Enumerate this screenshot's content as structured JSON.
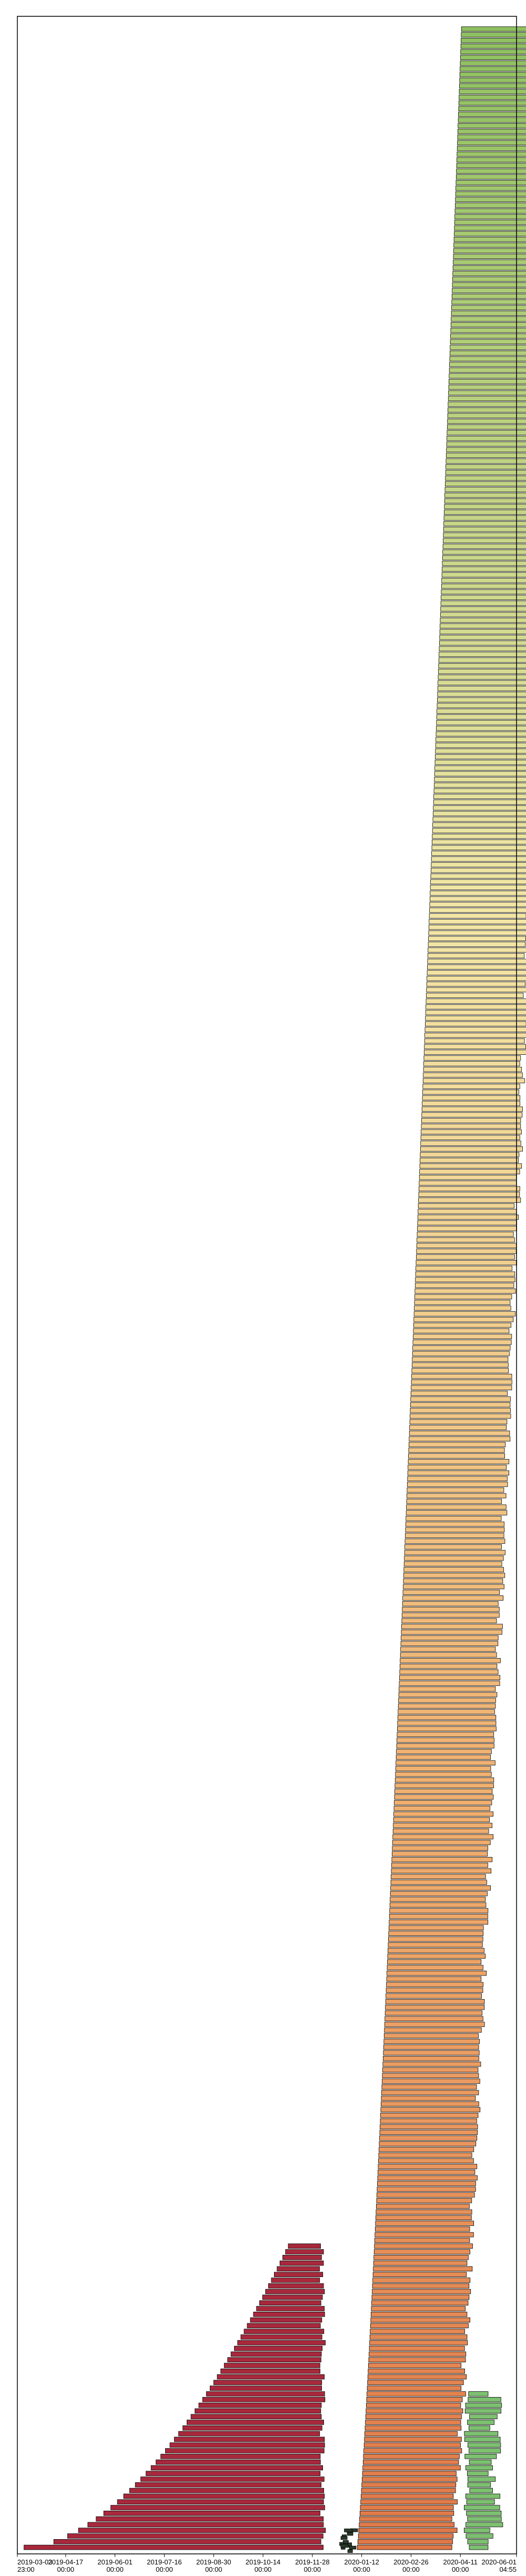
{
  "chart_data": {
    "type": "bar",
    "orientation": "horizontal",
    "title": "",
    "xlabel": "",
    "ylabel": "",
    "grid": false,
    "x_ticks": [
      [
        "2019-03-03",
        "23:00"
      ],
      [
        "2019-04-17",
        "00:00"
      ],
      [
        "2019-06-01",
        "00:00"
      ],
      [
        "2019-07-16",
        "00:00"
      ],
      [
        "2019-08-30",
        "00:00"
      ],
      [
        "2019-10-14",
        "00:00"
      ],
      [
        "2019-11-28",
        "00:00"
      ],
      [
        "2020-01-12",
        "00:00"
      ],
      [
        "2020-02-26",
        "00:00"
      ],
      [
        "2020-04-11",
        "00:00"
      ],
      [
        "2020-06-01",
        "04:55"
      ]
    ],
    "xlim": [
      "2019-03-03T23:00",
      "2020-06-01T04:55"
    ],
    "colors": {
      "red_group": "#a8283c",
      "orange_group": "#e07848",
      "yellow_group": "#f2e6a6",
      "green_group": "#8ec060",
      "light_green_group": "#7cc070",
      "outline": "#000000"
    },
    "groups": [
      {
        "color_key": "red_group",
        "bar_count": 60,
        "start_range": [
          "2019-03-10",
          "2019-11-06"
        ],
        "end_range": [
          "2019-12-04",
          "2019-12-10"
        ]
      },
      {
        "color_key": "orange_group",
        "bar_count": 40,
        "start_range": [
          "2020-01-04",
          "2020-01-12"
        ],
        "end_range": [
          "2020-04-05",
          "2020-04-11"
        ]
      },
      {
        "color_key": "yellow_group",
        "bar_count": 240,
        "start_range": [
          "2020-01-12",
          "2020-04-08"
        ],
        "end_range": [
          "2020-04-11",
          "2020-05-13"
        ]
      },
      {
        "color_key": "green_group",
        "bar_count": 80,
        "start_range": [
          "2020-04-08",
          "2020-04-17"
        ],
        "end_range": [
          "2020-04-20",
          "2020-05-13"
        ]
      },
      {
        "color_key": "light_green_group",
        "bar_count": 25,
        "start_range": [
          "2020-04-14",
          "2020-04-20"
        ],
        "end_range": [
          "2020-05-06",
          "2020-05-20"
        ]
      }
    ]
  }
}
